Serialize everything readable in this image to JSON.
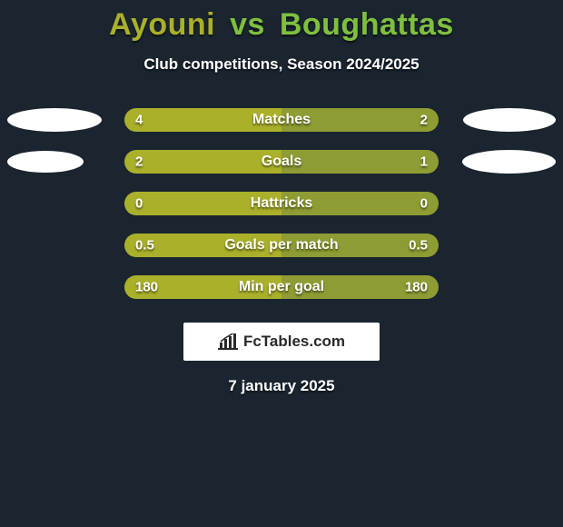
{
  "title": {
    "player1": "Ayouni",
    "vs": "vs",
    "player2": "Boughattas",
    "color_p1": "#aab02a",
    "color_vs": "#7fbf3f",
    "color_p2": "#7fbf3f"
  },
  "subtitle": "Club competitions, Season 2024/2025",
  "background_color": "#1a2530",
  "bar_left_color": "#aab02a",
  "bar_right_color": "#8f9b33",
  "ellipse_color": "#ffffff",
  "rows": [
    {
      "label": "Matches",
      "left_value": "4",
      "right_value": "2",
      "orb_left_w": 104,
      "orb_left_h": 26,
      "orb_right_w": 102,
      "orb_right_h": 26
    },
    {
      "label": "Goals",
      "left_value": "2",
      "right_value": "1",
      "orb_left_w": 84,
      "orb_left_h": 24,
      "orb_right_w": 103,
      "orb_right_h": 26
    },
    {
      "label": "Hattricks",
      "left_value": "0",
      "right_value": "0",
      "orb_left_w": 0,
      "orb_left_h": 0,
      "orb_right_w": 0,
      "orb_right_h": 0
    },
    {
      "label": "Goals per match",
      "left_value": "0.5",
      "right_value": "0.5",
      "orb_left_w": 0,
      "orb_left_h": 0,
      "orb_right_w": 0,
      "orb_right_h": 0
    },
    {
      "label": "Min per goal",
      "left_value": "180",
      "right_value": "180",
      "orb_left_w": 0,
      "orb_left_h": 0,
      "orb_right_w": 0,
      "orb_right_h": 0
    }
  ],
  "logo": {
    "text": "FcTables.com"
  },
  "date": "7 january 2025"
}
